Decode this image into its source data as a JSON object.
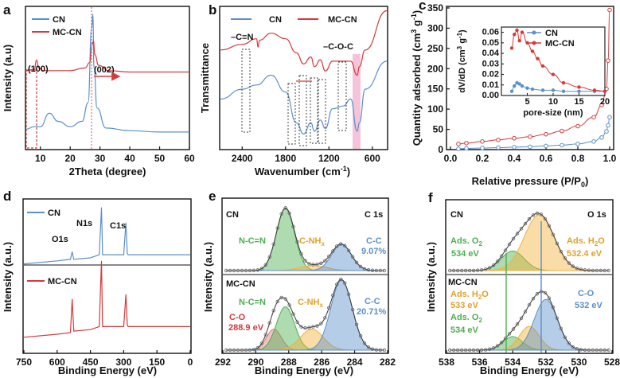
{
  "colors": {
    "cn": "#5b90c9",
    "mccn": "#d7393a",
    "green": "#4caf50",
    "orange": "#f2b23a",
    "salmon": "#e07a7a",
    "pink": "#f3b8d3"
  },
  "panels": {
    "a": {
      "label": "a",
      "xlabel": "2Theta (degree)",
      "ylabel": "Intensity (a.u)",
      "ticks": [
        "10",
        "20",
        "30",
        "40",
        "50",
        "60"
      ],
      "legend": [
        "CN",
        "MC-CN"
      ],
      "ann": [
        "(100)",
        "(002)"
      ]
    },
    "b": {
      "label": "b",
      "xlabel": "Wavenumber (cm",
      "xlabel_sup": "-1",
      "xlabel_end": ")",
      "ylabel": "Transmittance",
      "ticks": [
        "2400",
        "1800",
        "1200",
        "600"
      ],
      "legend": [
        "CN",
        "MC-CN"
      ],
      "ann": [
        "–C≡N",
        "–C-O-C"
      ]
    },
    "c": {
      "label": "c",
      "xlabel": "Relative pressure (P/P",
      "xlabel_sub": "0",
      "xlabel_end": ")",
      "ylabel": "Quantity adsorbed (cm",
      "ylabel_sup1": "3",
      "ylabel_mid": " g",
      "ylabel_sup2": "-1",
      "ylabel_end": ")",
      "yticks": [
        "0",
        "50",
        "100",
        "150",
        "200",
        "250",
        "300",
        "350"
      ],
      "xticks": [
        "0.0",
        "0.2",
        "0.4",
        "0.6",
        "0.8",
        "1.0"
      ],
      "inset": {
        "xlabel": "pore-size (nm)",
        "ylabel": "dV/dD (cm",
        "ylabel_sup": "3",
        "ylabel_end": " g",
        "ylabel_sup2": "-1",
        "ylabel_end2": ")",
        "xticks": [
          "5",
          "10",
          "15",
          "20"
        ],
        "yticks": [
          "0.00",
          "0.01",
          "0.02",
          "0.03",
          "0.04",
          "0.05",
          "0.06"
        ],
        "legend": [
          "CN",
          "MC-CN"
        ]
      }
    },
    "d": {
      "label": "d",
      "xlabel": "Binding Energy (eV)",
      "ylabel": "Intensity (a.u.)",
      "ticks": [
        "750",
        "600",
        "450",
        "300",
        "150",
        "0"
      ],
      "legend": [
        "CN",
        "MC-CN"
      ],
      "ann": [
        "N1s",
        "C1s",
        "O1s"
      ]
    },
    "e": {
      "label": "e",
      "xlabel": "Binding Energy (eV)",
      "ylabel": "Intensity (a.u.)",
      "ticks": [
        "292",
        "290",
        "288",
        "286",
        "284",
        "282"
      ],
      "title": "C 1s",
      "top": {
        "name": "CN",
        "ncn": "N-C=N",
        "cnh": "C-NH",
        "cnh_sub": "x",
        "cc": "C-C",
        "cc_pct": "9.07%"
      },
      "bot": {
        "name": "MC-CN",
        "ncn": "N-C=N",
        "cnh": "C-NH",
        "cnh_sub": "x",
        "cc": "C-C",
        "cc_pct": "20.71%",
        "co": "C-O",
        "co_ev": "288.9 eV"
      }
    },
    "f": {
      "label": "f",
      "xlabel": "Binding Energy (eV)",
      "ylabel": "Intensity (a.u.)",
      "ticks": [
        "538",
        "536",
        "534",
        "532",
        "530",
        "528"
      ],
      "title": "O 1s",
      "top": {
        "name": "CN",
        "o2": "Ads. O",
        "o2_sub": "2",
        "o2_ev": "534 eV",
        "h2o": "Ads. H",
        "h2o_sub": "2",
        "h2o_end": "O",
        "h2o_ev": "532.4 eV"
      },
      "bot": {
        "name": "MC-CN",
        "h2o": "Ads. H",
        "h2o_sub": "2",
        "h2o_end": "O",
        "h2o_ev": "533 eV",
        "o2": "Ads. O",
        "o2_sub": "2",
        "o2_ev": "534 eV",
        "co": "C-O",
        "co_ev": "532 eV"
      }
    }
  },
  "chart_data": [
    {
      "type": "line",
      "panel": "a",
      "title": "",
      "xlabel": "2Theta (degree)",
      "ylabel": "Intensity (a.u)",
      "xlim": [
        5,
        60
      ],
      "series": [
        {
          "name": "CN",
          "x": [
            5,
            8,
            10,
            13,
            16,
            20,
            24,
            26,
            27.2,
            27.6,
            28,
            29,
            32,
            40,
            50,
            60
          ],
          "values": [
            0.14,
            0.16,
            0.16,
            0.26,
            0.2,
            0.16,
            0.2,
            0.34,
            0.9,
            1.0,
            0.6,
            0.3,
            0.15,
            0.13,
            0.12,
            0.12
          ]
        },
        {
          "name": "MC-CN",
          "x": [
            5,
            8,
            8.7,
            9.5,
            11,
            15,
            20,
            25,
            26.5,
            27.4,
            27.8,
            28.3,
            29.5,
            33,
            40,
            50,
            60
          ],
          "values": [
            0.58,
            0.59,
            0.66,
            0.6,
            0.58,
            0.58,
            0.58,
            0.6,
            0.64,
            0.78,
            0.8,
            0.7,
            0.62,
            0.58,
            0.57,
            0.57,
            0.57
          ]
        }
      ]
    },
    {
      "type": "line",
      "panel": "b",
      "title": "",
      "xlabel": "Wavenumber (cm-1)",
      "ylabel": "Transmittance",
      "xlim": [
        2700,
        400
      ],
      "series": [
        {
          "name": "CN",
          "x": [
            2700,
            2400,
            2200,
            2000,
            1800,
            1650,
            1550,
            1450,
            1400,
            1320,
            1250,
            1150,
            1000,
            900,
            810,
            780,
            700,
            400
          ],
          "values": [
            0.35,
            0.42,
            0.45,
            0.52,
            0.4,
            0.18,
            0.1,
            0.18,
            0.12,
            0.2,
            0.14,
            0.28,
            0.3,
            0.35,
            0.12,
            0.18,
            0.42,
            0.62
          ]
        },
        {
          "name": "MC-CN",
          "x": [
            2700,
            2400,
            2200,
            2180,
            2160,
            2000,
            1800,
            1650,
            1550,
            1450,
            1400,
            1320,
            1250,
            1150,
            1000,
            900,
            810,
            780,
            700,
            400
          ],
          "values": [
            0.7,
            0.74,
            0.78,
            0.72,
            0.77,
            0.82,
            0.78,
            0.68,
            0.6,
            0.65,
            0.58,
            0.63,
            0.55,
            0.62,
            0.62,
            0.62,
            0.52,
            0.58,
            0.7,
            0.98
          ]
        }
      ]
    },
    {
      "type": "scatter",
      "panel": "c",
      "title": "",
      "xlabel": "Relative pressure (P/P0)",
      "ylabel": "Quantity adsorbed (cm3 g-1)",
      "xlim": [
        0,
        1
      ],
      "ylim": [
        0,
        350
      ],
      "series": [
        {
          "name": "CN",
          "x": [
            0.05,
            0.1,
            0.2,
            0.3,
            0.4,
            0.5,
            0.6,
            0.7,
            0.8,
            0.9,
            0.95,
            0.98,
            0.99,
            1.0
          ],
          "values": [
            2,
            3,
            4,
            5,
            6,
            7,
            9,
            11,
            14,
            20,
            30,
            45,
            60,
            80
          ]
        },
        {
          "name": "MC-CN",
          "x": [
            0.05,
            0.1,
            0.2,
            0.3,
            0.4,
            0.5,
            0.6,
            0.7,
            0.8,
            0.9,
            0.95,
            0.98,
            0.99,
            1.0
          ],
          "values": [
            14,
            16,
            20,
            24,
            28,
            32,
            38,
            46,
            58,
            80,
            110,
            150,
            220,
            345
          ]
        }
      ]
    },
    {
      "type": "line",
      "panel": "c-inset",
      "title": "",
      "xlabel": "pore-size (nm)",
      "ylabel": "dV/dD (cm3 g-1)",
      "xlim": [
        0,
        20
      ],
      "ylim": [
        0,
        0.065
      ],
      "series": [
        {
          "name": "CN",
          "x": [
            2,
            2.5,
            3,
            3.5,
            4,
            5,
            6,
            8,
            10,
            12,
            15,
            18,
            20
          ],
          "values": [
            0.004,
            0.009,
            0.012,
            0.011,
            0.009,
            0.007,
            0.006,
            0.005,
            0.005,
            0.004,
            0.004,
            0.004,
            0.004
          ]
        },
        {
          "name": "MC-CN",
          "x": [
            2,
            2.5,
            3,
            3.5,
            4,
            5,
            6,
            7,
            8,
            10,
            12,
            15,
            18,
            20
          ],
          "values": [
            0.045,
            0.058,
            0.062,
            0.052,
            0.06,
            0.05,
            0.042,
            0.035,
            0.028,
            0.02,
            0.012,
            0.008,
            0.005,
            0.004
          ]
        }
      ]
    },
    {
      "type": "line",
      "panel": "d",
      "title": "",
      "xlabel": "Binding Energy (eV)",
      "ylabel": "Intensity (a.u.)",
      "xlim": [
        750,
        0
      ],
      "series": [
        {
          "name": "CN",
          "x": [
            750,
            600,
            540,
            532,
            525,
            450,
            410,
            400,
            395,
            300,
            290,
            284,
            280,
            200,
            0
          ],
          "values": [
            0.58,
            0.6,
            0.61,
            0.66,
            0.61,
            0.62,
            0.64,
            0.95,
            0.64,
            0.64,
            0.85,
            0.65,
            0.64,
            0.64,
            0.64
          ]
        },
        {
          "name": "MC-CN",
          "x": [
            750,
            600,
            540,
            532,
            525,
            450,
            410,
            400,
            395,
            300,
            290,
            284,
            280,
            200,
            0
          ],
          "values": [
            0.1,
            0.12,
            0.13,
            0.35,
            0.14,
            0.15,
            0.17,
            0.6,
            0.17,
            0.17,
            0.38,
            0.18,
            0.17,
            0.17,
            0.17
          ]
        }
      ]
    },
    {
      "type": "line",
      "panel": "e",
      "title": "C 1s",
      "xlabel": "Binding Energy (eV)",
      "ylabel": "Intensity (a.u.)",
      "xlim": [
        292,
        282
      ],
      "series": [
        {
          "name": "CN N-C=N",
          "x": [
            288.2
          ],
          "values": [
            1.0
          ]
        },
        {
          "name": "CN C-NHx",
          "x": [
            286.5
          ],
          "values": [
            0.08
          ]
        },
        {
          "name": "CN C-C",
          "x": [
            284.8
          ],
          "values": [
            0.42
          ]
        },
        {
          "name": "MC-CN C-O",
          "x": [
            288.9
          ],
          "values": [
            0.3
          ]
        },
        {
          "name": "MC-CN N-C=N",
          "x": [
            288.2
          ],
          "values": [
            0.62
          ]
        },
        {
          "name": "MC-CN C-NHx",
          "x": [
            286.6
          ],
          "values": [
            0.3
          ]
        },
        {
          "name": "MC-CN C-C",
          "x": [
            284.8
          ],
          "values": [
            1.0
          ]
        }
      ]
    },
    {
      "type": "line",
      "panel": "f",
      "title": "O 1s",
      "xlabel": "Binding Energy (eV)",
      "ylabel": "Intensity (a.u.)",
      "xlim": [
        538,
        528
      ],
      "series": [
        {
          "name": "CN Ads. O2",
          "x": [
            534
          ],
          "values": [
            0.35
          ]
        },
        {
          "name": "CN Ads. H2O",
          "x": [
            532.4
          ],
          "values": [
            1.0
          ]
        },
        {
          "name": "MC-CN Ads. O2",
          "x": [
            534
          ],
          "values": [
            0.2
          ]
        },
        {
          "name": "MC-CN Ads. H2O",
          "x": [
            533
          ],
          "values": [
            0.35
          ]
        },
        {
          "name": "MC-CN C-O",
          "x": [
            532
          ],
          "values": [
            0.75
          ]
        }
      ]
    }
  ]
}
